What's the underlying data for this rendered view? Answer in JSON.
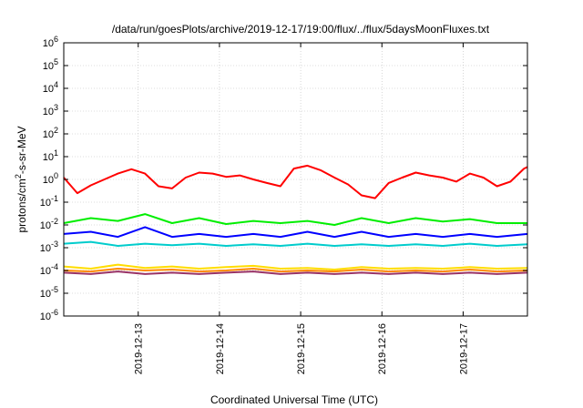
{
  "chart_data": {
    "type": "line",
    "title": "/data/run/goesPlots/archive/2019-12-17/19:00/flux/../flux/5daysMoonFluxes.txt",
    "xlabel": "Coordinated Universal Time (UTC)",
    "ylabel": {
      "prefix": "protons/cm",
      "sup": "2",
      "suffix": "-s-sr-MeV"
    },
    "yscale": "log",
    "ylim": [
      1e-06,
      1000000.0
    ],
    "xlim": [
      "2019-12-12T02:00",
      "2019-12-17T19:00"
    ],
    "grid": true,
    "x_ticks": [
      "2019-12-13",
      "2019-12-14",
      "2019-12-15",
      "2019-12-16",
      "2019-12-17"
    ],
    "y_ticks": [
      {
        "value": 1e-06,
        "base": "10",
        "exp": "-6"
      },
      {
        "value": 1e-05,
        "base": "10",
        "exp": "-5"
      },
      {
        "value": 0.0001,
        "base": "10",
        "exp": "-4"
      },
      {
        "value": 0.001,
        "base": "10",
        "exp": "-3"
      },
      {
        "value": 0.01,
        "base": "10",
        "exp": "-2"
      },
      {
        "value": 0.1,
        "base": "10",
        "exp": "-1"
      },
      {
        "value": 1,
        "base": "10",
        "exp": "0"
      },
      {
        "value": 10.0,
        "base": "10",
        "exp": "1"
      },
      {
        "value": 100.0,
        "base": "10",
        "exp": "2"
      },
      {
        "value": 1000.0,
        "base": "10",
        "exp": "3"
      },
      {
        "value": 10000.0,
        "base": "10",
        "exp": "4"
      },
      {
        "value": 100000.0,
        "base": "10",
        "exp": "5"
      },
      {
        "value": 1000000.0,
        "base": "10",
        "exp": "6"
      }
    ],
    "series": [
      {
        "color": "#ff0000",
        "x": [
          "2019-12-12T02:00",
          "2019-12-12T06:00",
          "2019-12-12T10:00",
          "2019-12-12T14:00",
          "2019-12-12T18:00",
          "2019-12-12T22:00",
          "2019-12-13T02:00",
          "2019-12-13T06:00",
          "2019-12-13T10:00",
          "2019-12-13T14:00",
          "2019-12-13T18:00",
          "2019-12-13T22:00",
          "2019-12-14T02:00",
          "2019-12-14T06:00",
          "2019-12-14T10:00",
          "2019-12-14T14:00",
          "2019-12-14T18:00",
          "2019-12-14T22:00",
          "2019-12-15T02:00",
          "2019-12-15T06:00",
          "2019-12-15T10:00",
          "2019-12-15T14:00",
          "2019-12-15T18:00",
          "2019-12-15T22:00",
          "2019-12-16T02:00",
          "2019-12-16T06:00",
          "2019-12-16T10:00",
          "2019-12-16T14:00",
          "2019-12-16T18:00",
          "2019-12-16T22:00",
          "2019-12-17T02:00",
          "2019-12-17T06:00",
          "2019-12-17T10:00",
          "2019-12-17T14:00",
          "2019-12-17T18:00",
          "2019-12-17T19:00"
        ],
        "y": [
          1.2,
          0.25,
          0.55,
          1.0,
          1.8,
          2.8,
          1.8,
          0.5,
          0.4,
          1.2,
          2.0,
          1.8,
          1.3,
          1.5,
          1.0,
          0.7,
          0.5,
          3.0,
          4.0,
          2.5,
          1.2,
          0.6,
          0.2,
          0.15,
          0.7,
          1.2,
          2.0,
          1.5,
          1.2,
          0.8,
          1.8,
          1.2,
          0.5,
          0.8,
          3.0,
          3.5
        ]
      },
      {
        "color": "#00ee00",
        "x": [
          "2019-12-12T02:00",
          "2019-12-12T10:00",
          "2019-12-12T18:00",
          "2019-12-13T02:00",
          "2019-12-13T10:00",
          "2019-12-13T18:00",
          "2019-12-14T02:00",
          "2019-12-14T10:00",
          "2019-12-14T18:00",
          "2019-12-15T02:00",
          "2019-12-15T10:00",
          "2019-12-15T18:00",
          "2019-12-16T02:00",
          "2019-12-16T10:00",
          "2019-12-16T18:00",
          "2019-12-17T02:00",
          "2019-12-17T10:00",
          "2019-12-17T19:00"
        ],
        "y": [
          0.012,
          0.02,
          0.015,
          0.03,
          0.012,
          0.02,
          0.011,
          0.015,
          0.012,
          0.015,
          0.01,
          0.02,
          0.012,
          0.02,
          0.014,
          0.018,
          0.012,
          0.012
        ]
      },
      {
        "color": "#0000ff",
        "x": [
          "2019-12-12T02:00",
          "2019-12-12T10:00",
          "2019-12-12T18:00",
          "2019-12-13T02:00",
          "2019-12-13T10:00",
          "2019-12-13T18:00",
          "2019-12-14T02:00",
          "2019-12-14T10:00",
          "2019-12-14T18:00",
          "2019-12-15T02:00",
          "2019-12-15T10:00",
          "2019-12-15T18:00",
          "2019-12-16T02:00",
          "2019-12-16T10:00",
          "2019-12-16T18:00",
          "2019-12-17T02:00",
          "2019-12-17T10:00",
          "2019-12-17T19:00"
        ],
        "y": [
          0.004,
          0.005,
          0.003,
          0.008,
          0.003,
          0.004,
          0.003,
          0.004,
          0.003,
          0.005,
          0.003,
          0.005,
          0.003,
          0.004,
          0.003,
          0.004,
          0.003,
          0.004
        ]
      },
      {
        "color": "#00cccc",
        "x": [
          "2019-12-12T02:00",
          "2019-12-12T10:00",
          "2019-12-12T18:00",
          "2019-12-13T02:00",
          "2019-12-13T10:00",
          "2019-12-13T18:00",
          "2019-12-14T02:00",
          "2019-12-14T10:00",
          "2019-12-14T18:00",
          "2019-12-15T02:00",
          "2019-12-15T10:00",
          "2019-12-15T18:00",
          "2019-12-16T02:00",
          "2019-12-16T10:00",
          "2019-12-16T18:00",
          "2019-12-17T02:00",
          "2019-12-17T10:00",
          "2019-12-17T19:00"
        ],
        "y": [
          0.0015,
          0.0018,
          0.0012,
          0.0015,
          0.0013,
          0.0015,
          0.0012,
          0.0014,
          0.0012,
          0.0015,
          0.0012,
          0.0014,
          0.0012,
          0.0014,
          0.0012,
          0.0015,
          0.0012,
          0.0014
        ]
      },
      {
        "color": "#ffdd00",
        "x": [
          "2019-12-12T02:00",
          "2019-12-12T10:00",
          "2019-12-12T18:00",
          "2019-12-13T02:00",
          "2019-12-13T10:00",
          "2019-12-13T18:00",
          "2019-12-14T02:00",
          "2019-12-14T10:00",
          "2019-12-14T18:00",
          "2019-12-15T02:00",
          "2019-12-15T10:00",
          "2019-12-15T18:00",
          "2019-12-16T02:00",
          "2019-12-16T10:00",
          "2019-12-16T18:00",
          "2019-12-17T02:00",
          "2019-12-17T10:00",
          "2019-12-17T19:00"
        ],
        "y": [
          0.00015,
          0.00012,
          0.00018,
          0.00013,
          0.00015,
          0.00012,
          0.00014,
          0.00016,
          0.00012,
          0.00013,
          0.00011,
          0.00014,
          0.00012,
          0.00013,
          0.00012,
          0.00014,
          0.00012,
          0.00013
        ]
      },
      {
        "color": "#ff8800",
        "x": [
          "2019-12-12T02:00",
          "2019-12-12T10:00",
          "2019-12-12T18:00",
          "2019-12-13T02:00",
          "2019-12-13T10:00",
          "2019-12-13T18:00",
          "2019-12-14T02:00",
          "2019-12-14T10:00",
          "2019-12-14T18:00",
          "2019-12-15T02:00",
          "2019-12-15T10:00",
          "2019-12-15T18:00",
          "2019-12-16T02:00",
          "2019-12-16T10:00",
          "2019-12-16T18:00",
          "2019-12-17T02:00",
          "2019-12-17T10:00",
          "2019-12-17T19:00"
        ],
        "y": [
          0.0001,
          9e-05,
          0.00012,
          0.0001,
          0.00011,
          9e-05,
          0.0001,
          0.00012,
          9e-05,
          0.0001,
          9e-05,
          0.00011,
          9e-05,
          0.0001,
          9e-05,
          0.00011,
          9e-05,
          0.0001
        ]
      },
      {
        "color": "#993366",
        "x": [
          "2019-12-12T02:00",
          "2019-12-12T10:00",
          "2019-12-12T18:00",
          "2019-12-13T02:00",
          "2019-12-13T10:00",
          "2019-12-13T18:00",
          "2019-12-14T02:00",
          "2019-12-14T10:00",
          "2019-12-14T18:00",
          "2019-12-15T02:00",
          "2019-12-15T10:00",
          "2019-12-15T18:00",
          "2019-12-16T02:00",
          "2019-12-16T10:00",
          "2019-12-16T18:00",
          "2019-12-17T02:00",
          "2019-12-17T10:00",
          "2019-12-17T19:00"
        ],
        "y": [
          8e-05,
          7e-05,
          9e-05,
          7e-05,
          8e-05,
          7e-05,
          8e-05,
          9e-05,
          7e-05,
          8e-05,
          7e-05,
          8e-05,
          7e-05,
          8e-05,
          7e-05,
          8e-05,
          7e-05,
          8e-05
        ]
      }
    ]
  }
}
